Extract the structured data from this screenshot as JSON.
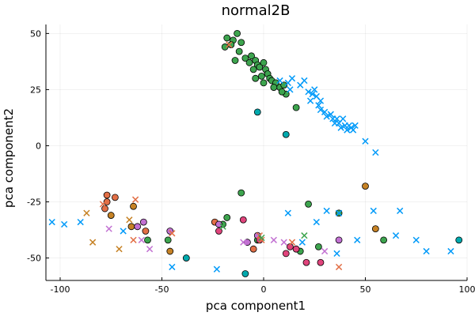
{
  "chart_data": {
    "type": "scatter",
    "title": "normal2B",
    "xlabel": "pca component1",
    "ylabel": "pca component2",
    "xlim": [
      -107,
      100
    ],
    "ylim": [
      -60,
      54
    ],
    "xticks": [
      -100,
      -50,
      0,
      50,
      100
    ],
    "yticks": [
      -50,
      -25,
      0,
      25,
      50
    ],
    "grid": true,
    "legend": "none",
    "series": [
      {
        "marker": "circle",
        "color": "#3da44e",
        "points": [
          [
            -18,
            48
          ],
          [
            -15,
            47
          ],
          [
            -13,
            50
          ],
          [
            -16,
            45
          ],
          [
            -19,
            44
          ],
          [
            -11,
            46
          ],
          [
            -12,
            42
          ],
          [
            -14,
            38
          ],
          [
            -9,
            39
          ],
          [
            -7,
            37
          ],
          [
            -6,
            40
          ],
          [
            -4,
            38
          ],
          [
            -3,
            36
          ],
          [
            -5,
            34
          ],
          [
            -2,
            35
          ],
          [
            0,
            37
          ],
          [
            1,
            34
          ],
          [
            2,
            32
          ],
          [
            -1,
            31
          ],
          [
            3,
            30
          ],
          [
            4,
            29
          ],
          [
            -4,
            30
          ],
          [
            0,
            28
          ],
          [
            6,
            28
          ],
          [
            8,
            26
          ],
          [
            10,
            27
          ],
          [
            11,
            23
          ],
          [
            9,
            24
          ],
          [
            5,
            26
          ],
          [
            16,
            17
          ],
          [
            -11,
            -21
          ],
          [
            -18,
            -32
          ],
          [
            -20,
            -35
          ],
          [
            -47,
            -42
          ],
          [
            -57,
            -42
          ],
          [
            -3,
            -42
          ],
          [
            18,
            -47
          ],
          [
            22,
            -26
          ],
          [
            37,
            -30
          ],
          [
            59,
            -42
          ],
          [
            27,
            -45
          ]
        ]
      },
      {
        "marker": "circle",
        "color": "#00a9ad",
        "points": [
          [
            -3,
            15
          ],
          [
            11,
            5
          ],
          [
            -38,
            -50
          ],
          [
            -9,
            -57
          ],
          [
            96,
            -42
          ]
        ]
      },
      {
        "marker": "circle",
        "color": "#e26f46",
        "points": [
          [
            -77,
            -22
          ],
          [
            -73,
            -23
          ],
          [
            -77,
            -25
          ],
          [
            -78,
            -28
          ],
          [
            -58,
            -38
          ],
          [
            -24,
            -34
          ],
          [
            -5,
            -46
          ]
        ]
      },
      {
        "marker": "circle",
        "color": "#c68225",
        "points": [
          [
            -75,
            -31
          ],
          [
            -64,
            -27
          ],
          [
            -65,
            -36
          ],
          [
            -46,
            -47
          ],
          [
            50,
            -18
          ],
          [
            55,
            -37
          ]
        ]
      },
      {
        "marker": "circle",
        "color": "#c271d2",
        "points": [
          [
            -62,
            -36
          ],
          [
            -59,
            -34
          ],
          [
            -46,
            -38
          ],
          [
            -8,
            -43
          ],
          [
            -3,
            -40
          ],
          [
            -22,
            -35
          ],
          [
            37,
            -42
          ]
        ]
      },
      {
        "marker": "circle",
        "color": "#e0447c",
        "points": [
          [
            -22,
            -38
          ],
          [
            -10,
            -33
          ],
          [
            -2,
            -42
          ],
          [
            11,
            -48
          ],
          [
            16,
            -46
          ],
          [
            21,
            -52
          ],
          [
            28,
            -52
          ],
          [
            13,
            -45
          ]
        ]
      },
      {
        "marker": "cross",
        "color": "#009af9",
        "points": [
          [
            -104,
            -34
          ],
          [
            -98,
            -35
          ],
          [
            -90,
            -34
          ],
          [
            -69,
            -38
          ],
          [
            -45,
            -54
          ],
          [
            -23,
            -55
          ],
          [
            12,
            -30
          ],
          [
            19,
            -43
          ],
          [
            26,
            -34
          ],
          [
            31,
            -29
          ],
          [
            36,
            -48
          ],
          [
            46,
            -42
          ],
          [
            54,
            -29
          ],
          [
            67,
            -29
          ],
          [
            65,
            -40
          ],
          [
            75,
            -42
          ],
          [
            80,
            -47
          ],
          [
            92,
            -47
          ],
          [
            37,
            -30
          ],
          [
            8,
            29
          ],
          [
            12,
            28
          ],
          [
            13,
            25
          ],
          [
            14,
            30
          ],
          [
            18,
            27
          ],
          [
            20,
            29
          ],
          [
            22,
            24
          ],
          [
            24,
            23
          ],
          [
            25,
            25
          ],
          [
            23,
            20
          ],
          [
            26,
            22
          ],
          [
            28,
            20
          ],
          [
            27,
            18
          ],
          [
            28,
            16
          ],
          [
            30,
            15
          ],
          [
            31,
            13
          ],
          [
            33,
            14
          ],
          [
            34,
            12
          ],
          [
            35,
            10
          ],
          [
            36,
            12
          ],
          [
            37,
            10
          ],
          [
            38,
            8
          ],
          [
            39,
            12
          ],
          [
            40,
            9
          ],
          [
            41,
            7
          ],
          [
            42,
            9
          ],
          [
            43,
            8
          ],
          [
            44,
            7
          ],
          [
            45,
            9
          ],
          [
            50,
            2
          ],
          [
            55,
            -3
          ]
        ]
      },
      {
        "marker": "cross",
        "color": "#e26f46",
        "points": [
          [
            -17,
            45
          ],
          [
            -63,
            -24
          ],
          [
            -79,
            -26
          ],
          [
            -45,
            -39
          ],
          [
            -64,
            -42
          ],
          [
            -1,
            -42
          ],
          [
            14,
            -43
          ],
          [
            -2,
            -40
          ],
          [
            37,
            -54
          ]
        ]
      },
      {
        "marker": "cross",
        "color": "#c68225",
        "points": [
          [
            -87,
            -30
          ],
          [
            -84,
            -43
          ],
          [
            -71,
            -46
          ],
          [
            -66,
            -33
          ]
        ]
      },
      {
        "marker": "cross",
        "color": "#c271d2",
        "points": [
          [
            -76,
            -37
          ],
          [
            -60,
            -42
          ],
          [
            -56,
            -46
          ],
          [
            -10,
            -43
          ],
          [
            5,
            -42
          ],
          [
            10,
            -43
          ],
          [
            30,
            -47
          ]
        ]
      },
      {
        "marker": "cross",
        "color": "#3da44e",
        "points": [
          [
            -1,
            -41
          ],
          [
            -20,
            -36
          ],
          [
            20,
            -40
          ]
        ]
      }
    ]
  }
}
